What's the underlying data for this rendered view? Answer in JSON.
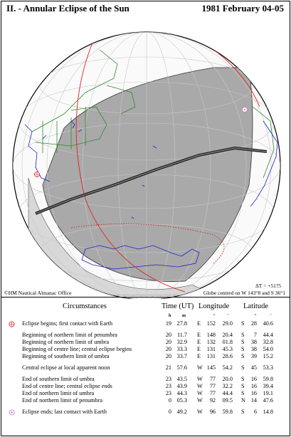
{
  "header": {
    "title": "II. - Annular Eclipse of the Sun",
    "date": "1981 February 04-05"
  },
  "globe": {
    "copyright": "©HM Nautical Almanac Office",
    "delta_t": "ΔT = +51?5",
    "centered": "Globe centred on W 143°8 and S 36°1",
    "colors": {
      "graticule": "#c8c8c8",
      "coastline": "#1f1fd6",
      "boundaries": "#2e8b2e",
      "penumbra_limit": "#e02020",
      "shadow": "#a9a9a9",
      "eclipse_marker": "#d080d0"
    }
  },
  "table": {
    "headers": {
      "circumstances": "Circumstances",
      "time": "Time (UT)",
      "longitude": "Longitude",
      "latitude": "Latitude"
    },
    "units": {
      "h": "h",
      "m": "m",
      "deg1": "°",
      "min1": "'",
      "deg2": "°",
      "min2": "'"
    },
    "rows": [
      {
        "desc": "Eclipse begins; first contact with Earth",
        "h": "19",
        "m": "27.8",
        "lh": "E",
        "ld": "152",
        "lm": "29.0",
        "ah": "S",
        "ad": "28",
        "am": "40.6",
        "marker": "begin"
      },
      {
        "desc": "Beginning of northern limit of penumbra",
        "h": "20",
        "m": "11.7",
        "lh": "E",
        "ld": "148",
        "lm": "20.4",
        "ah": "S",
        "ad": "7",
        "am": "44.4"
      },
      {
        "desc": "Beginning of northern limit of umbra",
        "h": "20",
        "m": "32.9",
        "lh": "E",
        "ld": "132",
        "lm": "01.8",
        "ah": "S",
        "ad": "38",
        "am": "32.8"
      },
      {
        "desc": "Beginning of centre line; central eclipse begins",
        "h": "20",
        "m": "33.3",
        "lh": "E",
        "ld": "131",
        "lm": "45.3",
        "ah": "S",
        "ad": "38",
        "am": "54.0"
      },
      {
        "desc": "Beginning of southern limit of umbra",
        "h": "20",
        "m": "33.7",
        "lh": "E",
        "ld": "131",
        "lm": "28.6",
        "ah": "S",
        "ad": "39",
        "am": "15.2"
      },
      {
        "desc": "Central eclipse at local apparent noon",
        "h": "21",
        "m": "57.6",
        "lh": "W",
        "ld": "145",
        "lm": "54.2",
        "ah": "S",
        "ad": "45",
        "am": "53.3"
      },
      {
        "desc": "End of southern limit of umbra",
        "h": "23",
        "m": "43.5",
        "lh": "W",
        "ld": "77",
        "lm": "20.0",
        "ah": "S",
        "ad": "16",
        "am": "59.8"
      },
      {
        "desc": "End of centre line; central eclipse ends",
        "h": "23",
        "m": "43.9",
        "lh": "W",
        "ld": "77",
        "lm": "32.2",
        "ah": "S",
        "ad": "16",
        "am": "39.4"
      },
      {
        "desc": "End of northern limit of umbra",
        "h": "23",
        "m": "44.3",
        "lh": "W",
        "ld": "77",
        "lm": "44.4",
        "ah": "S",
        "ad": "16",
        "am": "19.1"
      },
      {
        "desc": "End of northern limit of penumbra",
        "h": "0",
        "m": "05.3",
        "lh": "W",
        "ld": "92",
        "lm": "09.5",
        "ah": "N",
        "ad": "14",
        "am": "47.6"
      },
      {
        "desc": "Eclipse ends; last contact with Earth",
        "h": "0",
        "m": "49.2",
        "lh": "W",
        "ld": "96",
        "lm": "59.8",
        "ah": "S",
        "ad": "6",
        "am": "14.8",
        "marker": "end"
      }
    ]
  }
}
